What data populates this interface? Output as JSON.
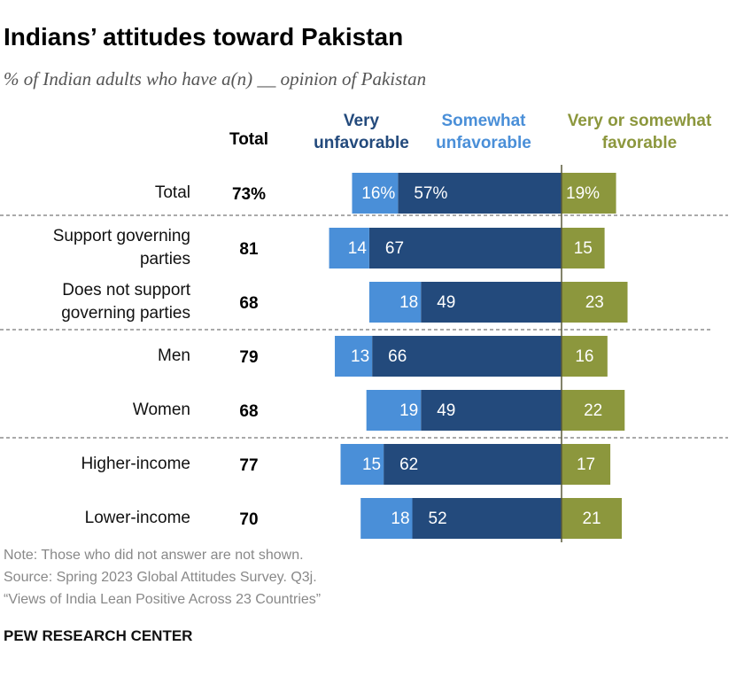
{
  "chart_data": {
    "type": "diverging_bar",
    "title": "Indians’ attitudes toward Pakistan",
    "subtitle": "% of Indian adults who have a(n) __ opinion of Pakistan",
    "categories": [
      "Total",
      "Support governing parties",
      "Does not support governing parties",
      "Men",
      "Women",
      "Higher-income",
      "Lower-income"
    ],
    "total_header": "Total",
    "totals": [
      73,
      81,
      68,
      79,
      68,
      77,
      70
    ],
    "total_labels": [
      "73%",
      "81",
      "68",
      "79",
      "68",
      "77",
      "70"
    ],
    "series": [
      {
        "name": "Very unfavorable",
        "color": "#234a7c",
        "side": "negative",
        "values": [
          57,
          67,
          49,
          66,
          49,
          62,
          52
        ],
        "value_labels": [
          "57%",
          "67",
          "49",
          "66",
          "49",
          "62",
          "52"
        ]
      },
      {
        "name": "Somewhat unfavorable",
        "color": "#4a8fd8",
        "side": "negative",
        "values": [
          16,
          14,
          18,
          13,
          19,
          15,
          18
        ],
        "value_labels": [
          "16%",
          "14",
          "18",
          "13",
          "19",
          "15",
          "18"
        ]
      },
      {
        "name": "Very or somewhat favorable",
        "color": "#8c973d",
        "side": "positive",
        "values": [
          19,
          15,
          23,
          16,
          22,
          17,
          21
        ],
        "value_labels": [
          "19%",
          "15",
          "23",
          "16",
          "22",
          "17",
          "21"
        ]
      }
    ],
    "note": "Note: Those who did not answer are not shown.",
    "source": "Source: Spring 2023 Global Attitudes Survey. Q3j.",
    "report": "“Views of India Lean Positive Across 23 Countries”",
    "org": "PEW RESEARCH CENTER"
  }
}
